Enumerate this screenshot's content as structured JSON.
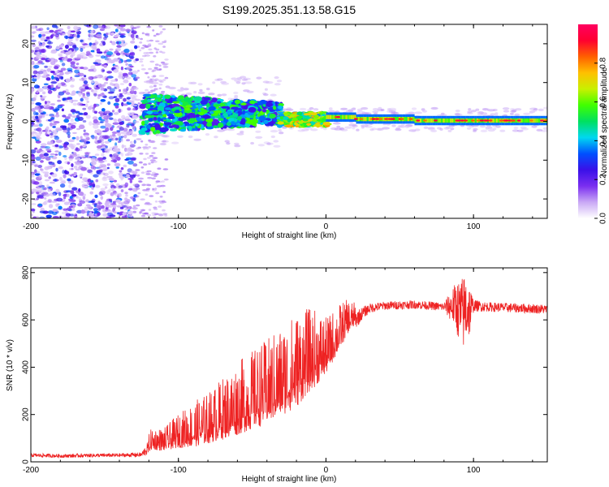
{
  "title": "S199.2025.351.13.58.G15",
  "chart_data": [
    {
      "type": "heatmap",
      "name": "spectrogram",
      "xlabel": "Height of straight line (km)",
      "ylabel": "Frequency (Hz)",
      "xlim": [
        -200,
        150
      ],
      "ylim": [
        -25,
        25
      ],
      "xticks": [
        -200,
        -100,
        0,
        100
      ],
      "yticks": [
        -20,
        -10,
        0,
        10,
        20
      ],
      "colorbar": {
        "label": "Normalized spectral amplitude",
        "range": [
          0.0,
          1.0
        ],
        "ticks": [
          "0.0",
          "0.2",
          "0.4",
          "0.6",
          "0.8"
        ],
        "colors": [
          "#ffffff",
          "#c9a8f5",
          "#7a2ef0",
          "#3a10e8",
          "#0050ff",
          "#00d8f0",
          "#00e060",
          "#40ff00",
          "#c8f000",
          "#ffc000",
          "#ff6000",
          "#ff0030",
          "#ff0060"
        ]
      },
      "regions": [
        {
          "x_range": [
            -200,
            -128
          ],
          "description": "scattered noise",
          "amplitude": 0.15
        },
        {
          "x_range": [
            -128,
            -110
          ],
          "description": "sparse noise",
          "amplitude": 0.05
        },
        {
          "x_range": [
            -125,
            -30
          ],
          "freq_band": [
            -3,
            8
          ],
          "amplitude": 0.4
        },
        {
          "x_range": [
            -30,
            0
          ],
          "freq_band": [
            -1,
            3
          ],
          "amplitude": 0.7
        },
        {
          "x_range": [
            0,
            150
          ],
          "freq_band": [
            -1,
            2
          ],
          "amplitude": 0.9
        }
      ]
    },
    {
      "type": "line",
      "name": "snr",
      "xlabel": "Height of straight line (km)",
      "ylabel": "SNR (10 * v/v)",
      "xlim": [
        -200,
        150
      ],
      "ylim": [
        0,
        820
      ],
      "xticks": [
        -200,
        -100,
        0,
        100
      ],
      "yticks": [
        0,
        200,
        400,
        600,
        800
      ],
      "color": "#ee2222",
      "series": [
        {
          "name": "SNR",
          "x": [
            -200,
            -180,
            -160,
            -140,
            -125,
            -118,
            -110,
            -100,
            -90,
            -80,
            -70,
            -60,
            -50,
            -40,
            -30,
            -20,
            -12,
            -5,
            0,
            5,
            10,
            15,
            20,
            25,
            30,
            40,
            60,
            80,
            88,
            92,
            95,
            98,
            100,
            110,
            130,
            150
          ],
          "values": [
            28,
            25,
            27,
            28,
            30,
            75,
            70,
            95,
            110,
            130,
            160,
            190,
            220,
            250,
            290,
            330,
            380,
            410,
            430,
            480,
            530,
            580,
            600,
            630,
            650,
            660,
            665,
            655,
            660,
            620,
            650,
            640,
            660,
            655,
            650,
            645
          ],
          "noise_amplitude": [
            8,
            8,
            8,
            8,
            10,
            40,
            40,
            60,
            80,
            90,
            110,
            130,
            140,
            150,
            160,
            170,
            150,
            130,
            100,
            90,
            80,
            60,
            40,
            25,
            20,
            18,
            18,
            18,
            100,
            160,
            160,
            100,
            25,
            20,
            20,
            20
          ]
        }
      ]
    }
  ]
}
